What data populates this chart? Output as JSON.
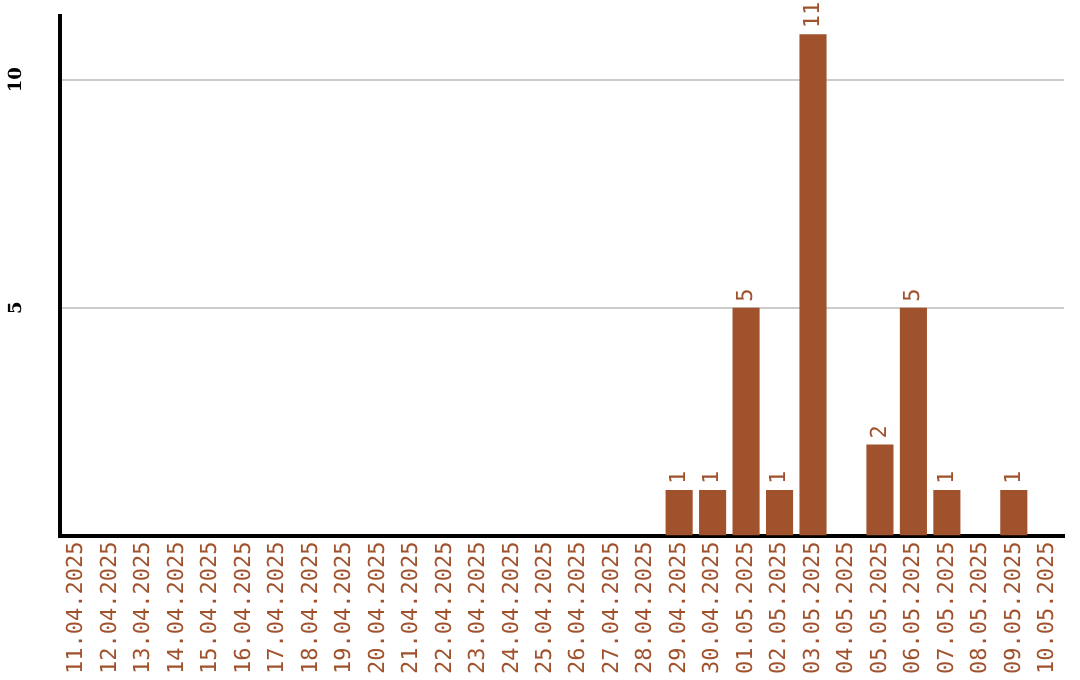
{
  "chart_data": {
    "type": "bar",
    "categories": [
      "11.04.2025",
      "12.04.2025",
      "13.04.2025",
      "14.04.2025",
      "15.04.2025",
      "16.04.2025",
      "17.04.2025",
      "18.04.2025",
      "19.04.2025",
      "20.04.2025",
      "21.04.2025",
      "22.04.2025",
      "23.04.2025",
      "24.04.2025",
      "25.04.2025",
      "26.04.2025",
      "27.04.2025",
      "28.04.2025",
      "29.04.2025",
      "30.04.2025",
      "01.05.2025",
      "02.05.2025",
      "03.05.2025",
      "04.05.2025",
      "05.05.2025",
      "06.05.2025",
      "07.05.2025",
      "08.05.2025",
      "09.05.2025",
      "10.05.2025"
    ],
    "values": [
      0,
      0,
      0,
      0,
      0,
      0,
      0,
      0,
      0,
      0,
      0,
      0,
      0,
      0,
      0,
      0,
      0,
      0,
      1,
      1,
      5,
      1,
      11,
      0,
      2,
      5,
      1,
      0,
      1,
      0
    ],
    "value_labels": [
      null,
      null,
      null,
      null,
      null,
      null,
      null,
      null,
      null,
      null,
      null,
      null,
      null,
      null,
      null,
      null,
      null,
      null,
      "1",
      "1",
      "5",
      "1",
      "11",
      null,
      "2",
      "5",
      "1",
      null,
      "1",
      null
    ],
    "color": "#a0522d",
    "ylim": [
      0,
      11.4
    ],
    "yticks": [
      5,
      10
    ],
    "grid": "y"
  }
}
